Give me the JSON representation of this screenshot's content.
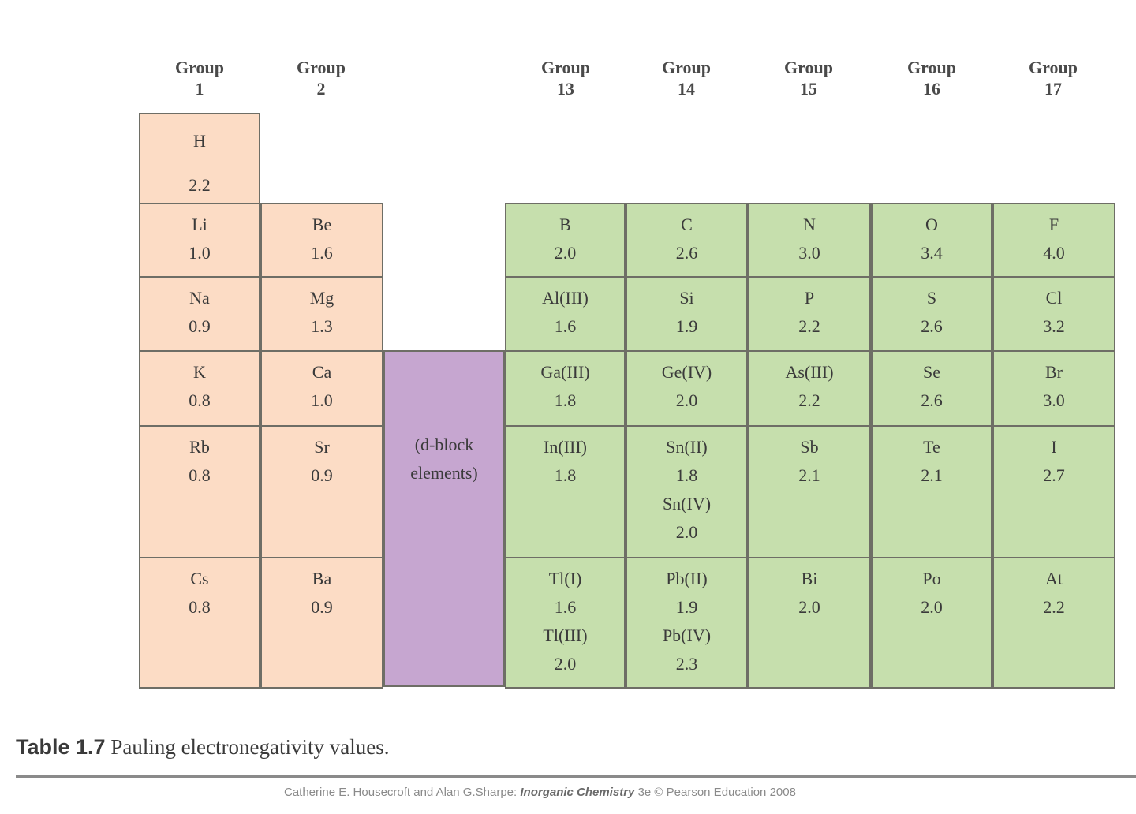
{
  "groups": [
    {
      "id": "g1",
      "label1": "Group",
      "label2": "1"
    },
    {
      "id": "g2",
      "label1": "Group",
      "label2": "2"
    },
    {
      "id": "g13",
      "label1": "Group",
      "label2": "13"
    },
    {
      "id": "g14",
      "label1": "Group",
      "label2": "14"
    },
    {
      "id": "g15",
      "label1": "Group",
      "label2": "15"
    },
    {
      "id": "g16",
      "label1": "Group",
      "label2": "16"
    },
    {
      "id": "g17",
      "label1": "Group",
      "label2": "17"
    }
  ],
  "hydrogen": {
    "symbol": "H",
    "value": "2.2"
  },
  "s_block": {
    "group1": [
      {
        "lines": [
          "Li",
          "1.0"
        ]
      },
      {
        "lines": [
          "Na",
          "0.9"
        ]
      },
      {
        "lines": [
          "K",
          "0.8"
        ]
      },
      {
        "lines": [
          "Rb",
          "0.8"
        ]
      },
      {
        "lines": [
          "Cs",
          "0.8"
        ]
      }
    ],
    "group2": [
      {
        "lines": [
          "Be",
          "1.6"
        ]
      },
      {
        "lines": [
          "Mg",
          "1.3"
        ]
      },
      {
        "lines": [
          "Ca",
          "1.0"
        ]
      },
      {
        "lines": [
          "Sr",
          "0.9"
        ]
      },
      {
        "lines": [
          "Ba",
          "0.9"
        ]
      }
    ]
  },
  "d_block": {
    "line1": "(d-block",
    "line2": "elements)"
  },
  "p_block": {
    "rows": [
      [
        {
          "lines": [
            "B",
            "2.0"
          ]
        },
        {
          "lines": [
            "C",
            "2.6"
          ]
        },
        {
          "lines": [
            "N",
            "3.0"
          ]
        },
        {
          "lines": [
            "O",
            "3.4"
          ]
        },
        {
          "lines": [
            "F",
            "4.0"
          ]
        }
      ],
      [
        {
          "lines": [
            "Al(III)",
            "1.6"
          ]
        },
        {
          "lines": [
            "Si",
            "1.9"
          ]
        },
        {
          "lines": [
            "P",
            "2.2"
          ]
        },
        {
          "lines": [
            "S",
            "2.6"
          ]
        },
        {
          "lines": [
            "Cl",
            "3.2"
          ]
        }
      ],
      [
        {
          "lines": [
            "Ga(III)",
            "1.8"
          ]
        },
        {
          "lines": [
            "Ge(IV)",
            "2.0"
          ]
        },
        {
          "lines": [
            "As(III)",
            "2.2"
          ]
        },
        {
          "lines": [
            "Se",
            "2.6"
          ]
        },
        {
          "lines": [
            "Br",
            "3.0"
          ]
        }
      ],
      [
        {
          "lines": [
            "In(III)",
            "1.8"
          ]
        },
        {
          "lines": [
            "Sn(II)",
            "1.8",
            "Sn(IV)",
            "2.0"
          ]
        },
        {
          "lines": [
            "Sb",
            "2.1"
          ]
        },
        {
          "lines": [
            "Te",
            "2.1"
          ]
        },
        {
          "lines": [
            "I",
            "2.7"
          ]
        }
      ],
      [
        {
          "lines": [
            "Tl(I)",
            "1.6",
            "Tl(III)",
            "2.0"
          ]
        },
        {
          "lines": [
            "Pb(II)",
            "1.9",
            "Pb(IV)",
            "2.3"
          ]
        },
        {
          "lines": [
            "Bi",
            "2.0"
          ]
        },
        {
          "lines": [
            "Po",
            "2.0"
          ]
        },
        {
          "lines": [
            "At",
            "2.2"
          ]
        }
      ]
    ]
  },
  "caption": {
    "number": "Table 1.7",
    "text": "Pauling electronegativity values."
  },
  "credit": {
    "prefix": "Catherine E. Housecroft and Alan G.Sharpe:",
    "book": "Inorganic Chemistry",
    "suffix": "3e © Pearson Education 2008"
  },
  "colors": {
    "s_block": "#fcdcc5",
    "p_block": "#c6dfad",
    "d_block": "#c6a6d0",
    "border": "#6e6e66"
  }
}
